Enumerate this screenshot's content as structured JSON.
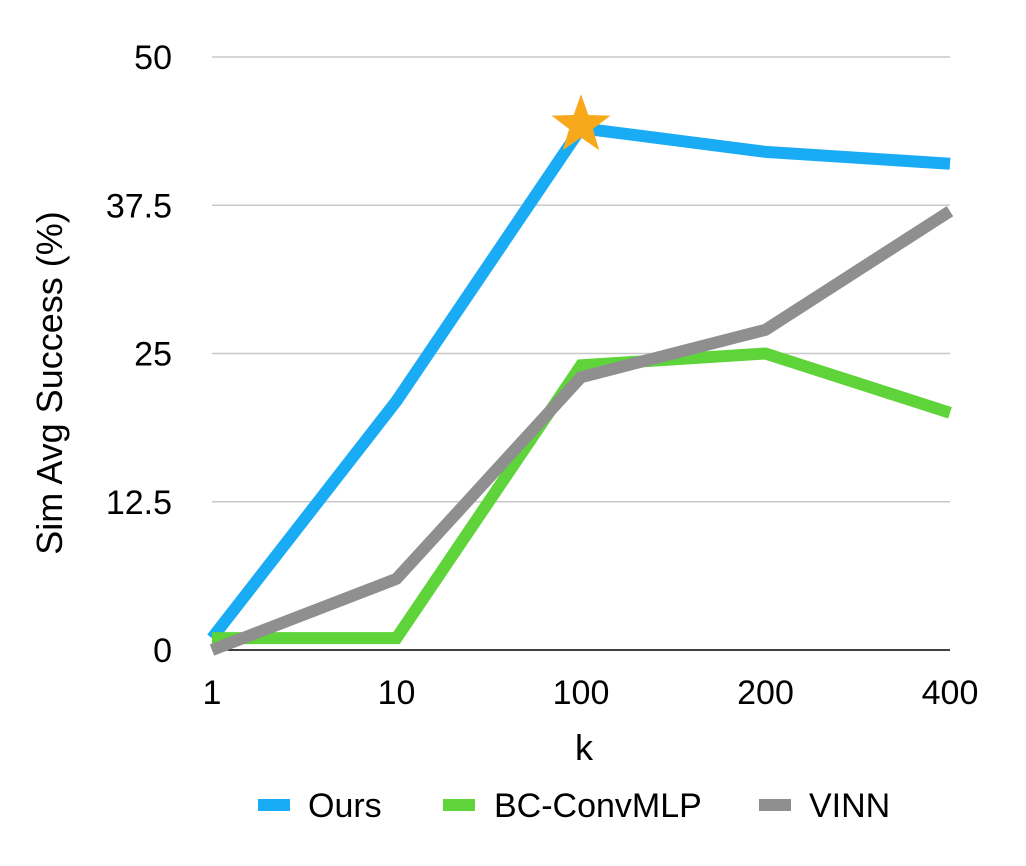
{
  "chart_data": {
    "type": "line",
    "title": "",
    "xlabel": "k",
    "ylabel": "Sim Avg Success (%)",
    "categories": [
      "1",
      "10",
      "100",
      "200",
      "400"
    ],
    "yticks": [
      "0",
      "12.5",
      "25",
      "37.5",
      "50"
    ],
    "ylim": [
      0,
      50
    ],
    "grid": true,
    "legend_position": "bottom",
    "series": [
      {
        "name": "Ours",
        "color": "#1AABF5",
        "values": [
          1,
          21,
          44,
          42,
          41
        ]
      },
      {
        "name": "BC-ConvMLP",
        "color": "#5FD43A",
        "values": [
          1,
          1,
          24,
          25,
          20
        ]
      },
      {
        "name": "VINN",
        "color": "#8F8F8F",
        "values": [
          0,
          6,
          23,
          27,
          37
        ]
      }
    ],
    "annotation": {
      "type": "star",
      "series": "Ours",
      "category": "100",
      "value": 44,
      "color": "#F7A81B"
    }
  }
}
